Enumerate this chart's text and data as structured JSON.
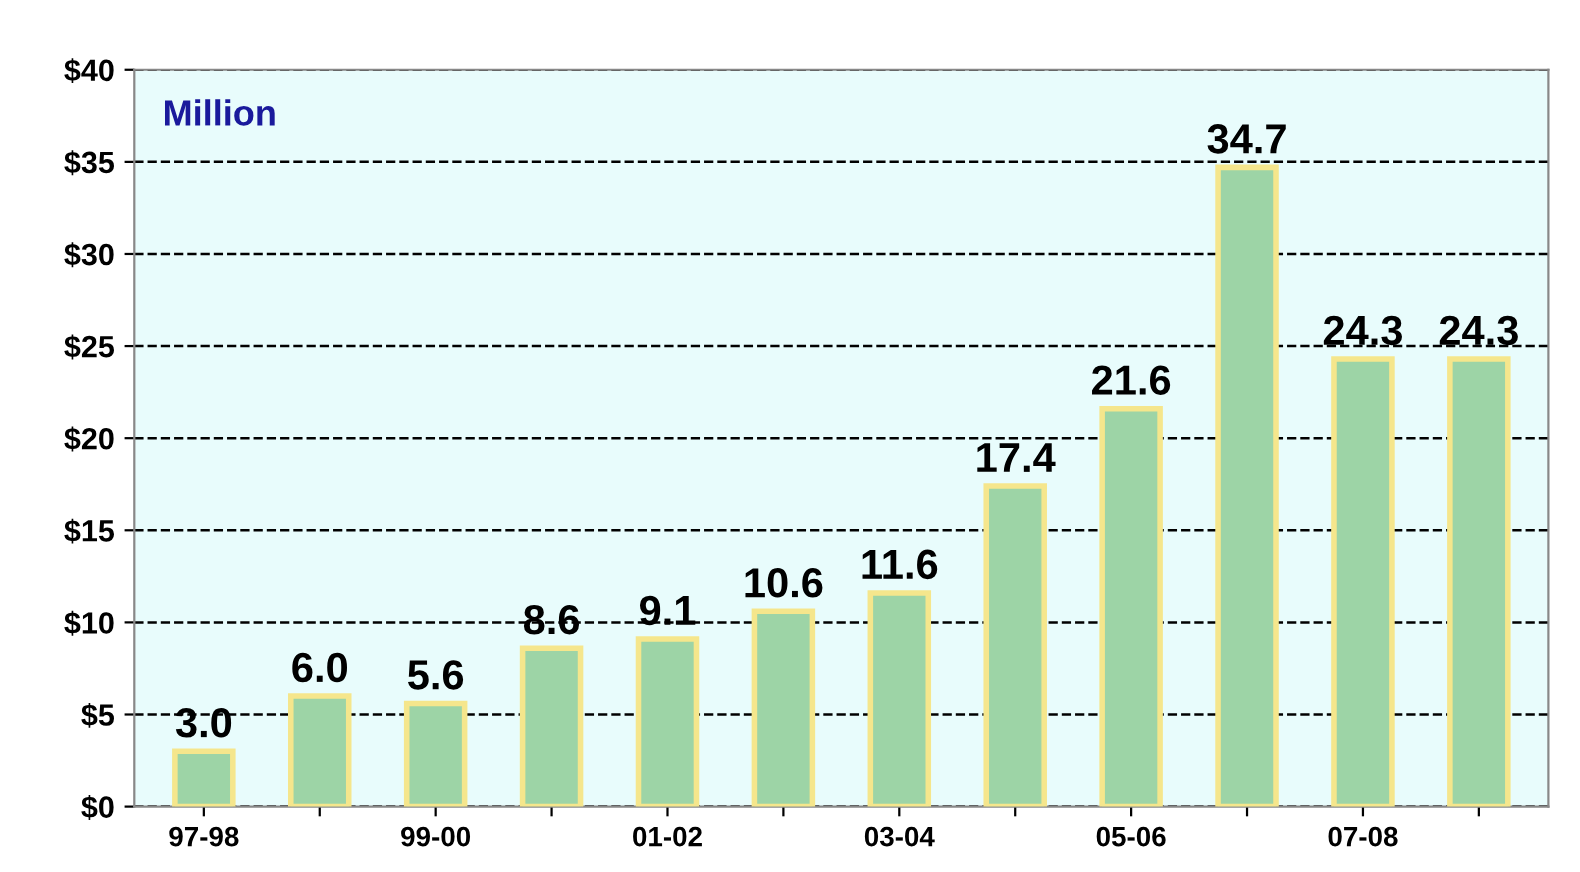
{
  "chart_data": {
    "type": "bar",
    "categories": [
      "97-98",
      null,
      "99-00",
      null,
      "01-02",
      null,
      "03-04",
      null,
      "05-06",
      null,
      "07-08",
      null
    ],
    "values": [
      3.0,
      6.0,
      5.6,
      8.6,
      9.1,
      10.6,
      11.6,
      17.4,
      21.6,
      34.7,
      24.3,
      24.3
    ],
    "color": "#9dd4a6",
    "value_labels": [
      "3.0",
      "6.0",
      "5.6",
      "8.6",
      "9.1",
      "10.6",
      "11.6",
      "17.4",
      "21.6",
      "34.7",
      "24.3",
      "24.3"
    ],
    "ylim": [
      0,
      40
    ],
    "yticks": [
      {
        "value": 0,
        "label": "$0"
      },
      {
        "value": 5,
        "label": "$5"
      },
      {
        "value": 10,
        "label": "$10"
      },
      {
        "value": 15,
        "label": "$15"
      },
      {
        "value": 20,
        "label": "$20"
      },
      {
        "value": 25,
        "label": "$25"
      },
      {
        "value": 30,
        "label": "$30"
      },
      {
        "value": 35,
        "label": "$35"
      },
      {
        "value": 40,
        "label": "$40"
      }
    ],
    "grid": "y",
    "line_style": "dashed",
    "annotations": [
      "Million"
    ]
  }
}
